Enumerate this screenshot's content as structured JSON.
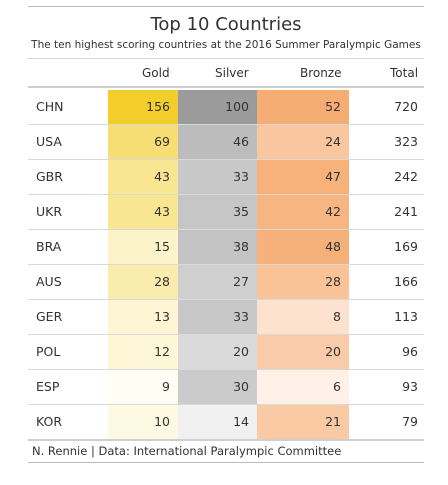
{
  "chart_data": {
    "type": "table",
    "title": "Top 10 Countries",
    "subtitle": "The ten highest scoring countries at the 2016 Summer Paralympic Games",
    "columns": [
      "",
      "Gold",
      "Silver",
      "Bronze",
      "Total"
    ],
    "rows": [
      {
        "country": "CHN",
        "gold": 156,
        "silver": 100,
        "bronze": 52,
        "total": 720
      },
      {
        "country": "USA",
        "gold": 69,
        "silver": 46,
        "bronze": 24,
        "total": 323
      },
      {
        "country": "GBR",
        "gold": 43,
        "silver": 33,
        "bronze": 47,
        "total": 242
      },
      {
        "country": "UKR",
        "gold": 43,
        "silver": 35,
        "bronze": 42,
        "total": 241
      },
      {
        "country": "BRA",
        "gold": 15,
        "silver": 38,
        "bronze": 48,
        "total": 169
      },
      {
        "country": "AUS",
        "gold": 28,
        "silver": 27,
        "bronze": 28,
        "total": 166
      },
      {
        "country": "GER",
        "gold": 13,
        "silver": 33,
        "bronze": 8,
        "total": 113
      },
      {
        "country": "POL",
        "gold": 12,
        "silver": 20,
        "bronze": 20,
        "total": 96
      },
      {
        "country": "ESP",
        "gold": 9,
        "silver": 30,
        "bronze": 6,
        "total": 93
      },
      {
        "country": "KOR",
        "gold": 10,
        "silver": 14,
        "bronze": 21,
        "total": 79
      }
    ],
    "caption": "N. Rennie | Data: International Paralympic Committee",
    "heat_colors": {
      "gold": {
        "low": "#fffdf4",
        "high": "#f2cd2b"
      },
      "silver": {
        "low": "#f0f0f0",
        "high": "#9b9b9b"
      },
      "bronze": {
        "low": "#fff1e7",
        "high": "#f6ad74"
      }
    }
  }
}
